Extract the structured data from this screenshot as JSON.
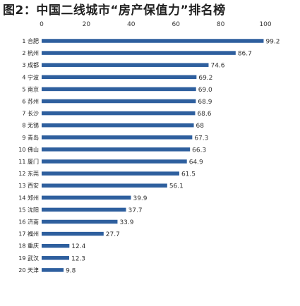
{
  "chart_data": {
    "type": "bar",
    "orientation": "horizontal",
    "title": "图2：中国二线城市“房产保值力”排名榜",
    "xlabel": "",
    "ylabel": "",
    "xlim": [
      0,
      100
    ],
    "x_ticks": [
      0,
      20,
      40,
      60,
      80,
      100
    ],
    "grid": false,
    "bar_color": "#2e5f9e",
    "categories": [
      "1 合肥",
      "2 杭州",
      "3 成都",
      "4 宁波",
      "5 南京",
      "6 苏州",
      "7 长沙",
      "8 无锡",
      "9 青岛",
      "10 佛山",
      "11 厦门",
      "12 东莞",
      "13 西安",
      "14 郑州",
      "15 沈阳",
      "16 济南",
      "17 福州",
      "18 重庆",
      "19 武汉",
      "20 天津"
    ],
    "values": [
      99.2,
      86.7,
      74.6,
      69.2,
      69.0,
      68.9,
      68.6,
      68,
      67.3,
      66.3,
      64.9,
      61.5,
      56.1,
      39.9,
      37.7,
      33.9,
      27.7,
      12.4,
      12.3,
      9.8
    ],
    "value_labels": [
      "99.2",
      "86.7",
      "74.6",
      "69.2",
      "69.0",
      "68.9",
      "68.6",
      "68",
      "67.3",
      "66.3",
      "64.9",
      "61.5",
      "56.1",
      "39.9",
      "37.7",
      "33.9",
      "27.7",
      "12.4",
      "12.3",
      "9.8"
    ]
  }
}
